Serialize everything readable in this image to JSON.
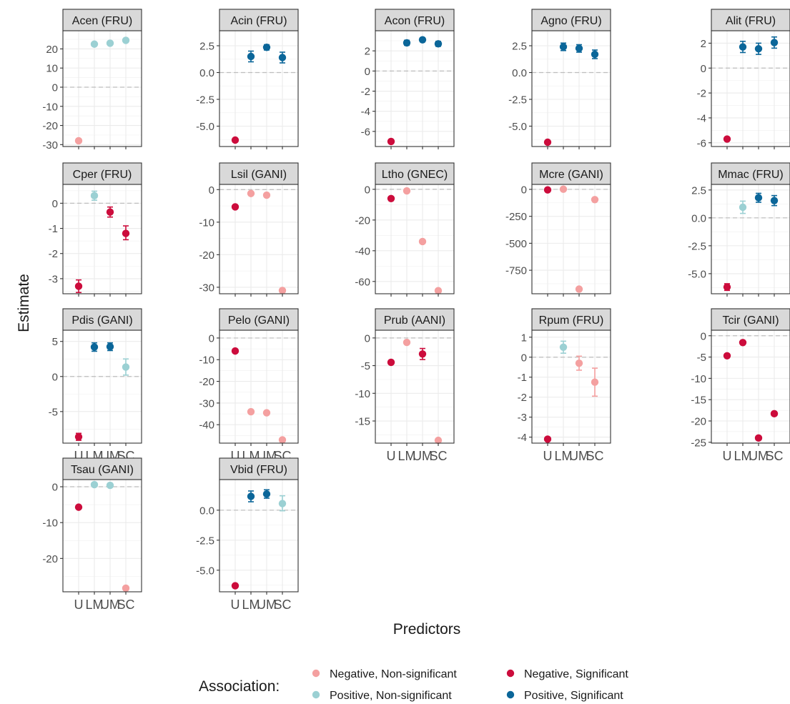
{
  "chart_data": {
    "type": "scatter",
    "facet_layout": "4 rows x 5 columns, free y scales",
    "xlabel": "Predictors",
    "ylabel": "Estimate",
    "categories": [
      "U",
      "LM",
      "UM",
      "SC"
    ],
    "grid": true,
    "reference_line": 0,
    "legend": {
      "title": "Association:",
      "position": "bottom",
      "entries": [
        {
          "label": "Negative, Non-significant",
          "color": "#f4a0a0"
        },
        {
          "label": "Negative, Significant",
          "color": "#cc0c3c"
        },
        {
          "label": "Positive, Non-significant",
          "color": "#9bd0d3"
        },
        {
          "label": "Positive, Significant",
          "color": "#0b6699"
        }
      ]
    },
    "panels": [
      {
        "title": "Acen (FRU)",
        "ylim": [
          -31,
          29.5
        ],
        "yticks": [
          -30,
          -20,
          -10,
          0,
          10,
          20
        ],
        "points": [
          {
            "x": "U",
            "y": -28,
            "lo": -28,
            "hi": -28,
            "assoc": 0
          },
          {
            "x": "LM",
            "y": 22.5,
            "lo": 22.5,
            "hi": 22.5,
            "assoc": 2
          },
          {
            "x": "UM",
            "y": 23,
            "lo": 23,
            "hi": 23,
            "assoc": 2
          },
          {
            "x": "SC",
            "y": 24.5,
            "lo": 24.5,
            "hi": 24.5,
            "assoc": 2
          }
        ]
      },
      {
        "title": "Acin (FRU)",
        "ylim": [
          -6.9,
          3.9
        ],
        "yticks": [
          -5,
          -2.5,
          0,
          2.5
        ],
        "ytick_labels": [
          "-5.0",
          "-2.5",
          "0.0",
          "2.5"
        ],
        "points": [
          {
            "x": "U",
            "y": -6.3,
            "lo": -6.3,
            "hi": -6.3,
            "assoc": 1
          },
          {
            "x": "LM",
            "y": 1.5,
            "lo": 1.0,
            "hi": 2.0,
            "assoc": 3
          },
          {
            "x": "UM",
            "y": 2.35,
            "lo": 2.1,
            "hi": 2.6,
            "assoc": 3
          },
          {
            "x": "SC",
            "y": 1.4,
            "lo": 0.9,
            "hi": 1.9,
            "assoc": 3
          }
        ]
      },
      {
        "title": "Acon (FRU)",
        "ylim": [
          -7.5,
          4.0
        ],
        "yticks": [
          -6,
          -4,
          -2,
          0,
          2
        ],
        "points": [
          {
            "x": "U",
            "y": -7.0,
            "lo": -7.0,
            "hi": -7.0,
            "assoc": 1
          },
          {
            "x": "LM",
            "y": 2.8,
            "lo": 2.55,
            "hi": 3.05,
            "assoc": 3
          },
          {
            "x": "UM",
            "y": 3.1,
            "lo": 2.9,
            "hi": 3.3,
            "assoc": 3
          },
          {
            "x": "SC",
            "y": 2.7,
            "lo": 2.45,
            "hi": 2.95,
            "assoc": 3
          }
        ]
      },
      {
        "title": "Agno (FRU)",
        "ylim": [
          -6.9,
          3.9
        ],
        "yticks": [
          -5,
          -2.5,
          0,
          2.5
        ],
        "ytick_labels": [
          "-5.0",
          "-2.5",
          "0.0",
          "2.5"
        ],
        "points": [
          {
            "x": "U",
            "y": -6.5,
            "lo": -6.5,
            "hi": -6.5,
            "assoc": 1
          },
          {
            "x": "LM",
            "y": 2.4,
            "lo": 2.05,
            "hi": 2.75,
            "assoc": 3
          },
          {
            "x": "UM",
            "y": 2.25,
            "lo": 1.9,
            "hi": 2.6,
            "assoc": 3
          },
          {
            "x": "SC",
            "y": 1.7,
            "lo": 1.3,
            "hi": 2.1,
            "assoc": 3
          }
        ]
      },
      {
        "title": "Alit (FRU)",
        "ylim": [
          -6.3,
          3.0
        ],
        "yticks": [
          -6,
          -4,
          -2,
          0,
          2
        ],
        "points": [
          {
            "x": "U",
            "y": -5.7,
            "lo": -5.7,
            "hi": -5.7,
            "assoc": 1
          },
          {
            "x": "LM",
            "y": 1.7,
            "lo": 1.25,
            "hi": 2.15,
            "assoc": 3
          },
          {
            "x": "UM",
            "y": 1.55,
            "lo": 1.1,
            "hi": 2.0,
            "assoc": 3
          },
          {
            "x": "SC",
            "y": 2.05,
            "lo": 1.6,
            "hi": 2.5,
            "assoc": 3
          }
        ]
      },
      {
        "title": "Cper (FRU)",
        "ylim": [
          -3.6,
          0.75
        ],
        "yticks": [
          -3,
          -2,
          -1,
          0
        ],
        "points": [
          {
            "x": "U",
            "y": -3.3,
            "lo": -3.55,
            "hi": -3.05,
            "assoc": 1
          },
          {
            "x": "LM",
            "y": 0.3,
            "lo": 0.12,
            "hi": 0.48,
            "assoc": 2
          },
          {
            "x": "UM",
            "y": -0.35,
            "lo": -0.55,
            "hi": -0.15,
            "assoc": 1
          },
          {
            "x": "SC",
            "y": -1.2,
            "lo": -1.45,
            "hi": -0.9,
            "assoc": 1
          }
        ]
      },
      {
        "title": "Lsil (GANI)",
        "ylim": [
          -32,
          1.6
        ],
        "yticks": [
          -30,
          -20,
          -10,
          0
        ],
        "points": [
          {
            "x": "U",
            "y": -5.3,
            "lo": -5.3,
            "hi": -5.3,
            "assoc": 1
          },
          {
            "x": "LM",
            "y": -1.2,
            "lo": -1.2,
            "hi": -1.2,
            "assoc": 0
          },
          {
            "x": "UM",
            "y": -1.7,
            "lo": -1.7,
            "hi": -1.7,
            "assoc": 0
          },
          {
            "x": "SC",
            "y": -31,
            "lo": -31,
            "hi": -31,
            "assoc": 0
          }
        ]
      },
      {
        "title": "Ltho (GNEC)",
        "ylim": [
          -68,
          3.2
        ],
        "yticks": [
          -60,
          -40,
          -20,
          0
        ],
        "points": [
          {
            "x": "U",
            "y": -6,
            "lo": -6,
            "hi": -6,
            "assoc": 1
          },
          {
            "x": "LM",
            "y": -1,
            "lo": -1,
            "hi": -1,
            "assoc": 0
          },
          {
            "x": "UM",
            "y": -34,
            "lo": -34,
            "hi": -34,
            "assoc": 0
          },
          {
            "x": "SC",
            "y": -66,
            "lo": -66,
            "hi": -66,
            "assoc": 0
          }
        ]
      },
      {
        "title": "Mcre (GANI)",
        "ylim": [
          -968,
          46
        ],
        "yticks": [
          -750,
          -500,
          -250,
          0
        ],
        "points": [
          {
            "x": "U",
            "y": -5,
            "lo": -5,
            "hi": -5,
            "assoc": 1
          },
          {
            "x": "LM",
            "y": 2,
            "lo": 2,
            "hi": 2,
            "assoc": 0
          },
          {
            "x": "UM",
            "y": -925,
            "lo": -925,
            "hi": -925,
            "assoc": 0
          },
          {
            "x": "SC",
            "y": -95,
            "lo": -95,
            "hi": -95,
            "assoc": 0
          }
        ]
      },
      {
        "title": "Mmac (FRU)",
        "ylim": [
          -6.8,
          3.0
        ],
        "yticks": [
          -5,
          -2.5,
          0,
          2.5
        ],
        "ytick_labels": [
          "-5.0",
          "-2.5",
          "0.0",
          "2.5"
        ],
        "points": [
          {
            "x": "U",
            "y": -6.2,
            "lo": -6.5,
            "hi": -5.9,
            "assoc": 1
          },
          {
            "x": "LM",
            "y": 0.95,
            "lo": 0.4,
            "hi": 1.5,
            "assoc": 2
          },
          {
            "x": "UM",
            "y": 1.8,
            "lo": 1.4,
            "hi": 2.2,
            "assoc": 3
          },
          {
            "x": "SC",
            "y": 1.55,
            "lo": 1.1,
            "hi": 2.0,
            "assoc": 3
          }
        ]
      },
      {
        "title": "Pdis (GANI)",
        "ylim": [
          -9.5,
          6.6
        ],
        "yticks": [
          -5,
          0,
          5
        ],
        "points": [
          {
            "x": "U",
            "y": -8.6,
            "lo": -9.1,
            "hi": -8.1,
            "assoc": 1
          },
          {
            "x": "LM",
            "y": 4.2,
            "lo": 3.6,
            "hi": 4.8,
            "assoc": 3
          },
          {
            "x": "UM",
            "y": 4.25,
            "lo": 3.7,
            "hi": 4.8,
            "assoc": 3
          },
          {
            "x": "SC",
            "y": 1.35,
            "lo": 0.2,
            "hi": 2.5,
            "assoc": 2
          }
        ]
      },
      {
        "title": "Pelo (GANI)",
        "ylim": [
          -48.5,
          3.6
        ],
        "yticks": [
          -40,
          -30,
          -20,
          -10,
          0
        ],
        "points": [
          {
            "x": "U",
            "y": -6,
            "lo": -6,
            "hi": -6,
            "assoc": 1
          },
          {
            "x": "LM",
            "y": -34,
            "lo": -34,
            "hi": -34,
            "assoc": 0
          },
          {
            "x": "UM",
            "y": -34.5,
            "lo": -34.5,
            "hi": -34.5,
            "assoc": 0
          },
          {
            "x": "SC",
            "y": -47,
            "lo": -47,
            "hi": -47,
            "assoc": 0
          }
        ]
      },
      {
        "title": "Prub (AANI)",
        "ylim": [
          -19.0,
          1.4
        ],
        "yticks": [
          -15,
          -10,
          -5,
          0
        ],
        "points": [
          {
            "x": "U",
            "y": -4.4,
            "lo": -4.4,
            "hi": -4.4,
            "assoc": 1
          },
          {
            "x": "LM",
            "y": -0.8,
            "lo": -0.8,
            "hi": -0.8,
            "assoc": 0
          },
          {
            "x": "UM",
            "y": -2.9,
            "lo": -3.9,
            "hi": -1.9,
            "assoc": 1
          },
          {
            "x": "SC",
            "y": -18.5,
            "lo": -18.5,
            "hi": -18.5,
            "assoc": 0
          }
        ]
      },
      {
        "title": "Rpum (FRU)",
        "ylim": [
          -4.3,
          1.35
        ],
        "yticks": [
          -4,
          -3,
          -2,
          -1,
          0,
          1
        ],
        "points": [
          {
            "x": "U",
            "y": -4.1,
            "lo": -4.1,
            "hi": -4.1,
            "assoc": 1
          },
          {
            "x": "LM",
            "y": 0.5,
            "lo": 0.2,
            "hi": 0.8,
            "assoc": 2
          },
          {
            "x": "UM",
            "y": -0.3,
            "lo": -0.65,
            "hi": 0.05,
            "assoc": 0
          },
          {
            "x": "SC",
            "y": -1.25,
            "lo": -1.95,
            "hi": -0.55,
            "assoc": 0
          }
        ]
      },
      {
        "title": "Tcir (GANI)",
        "ylim": [
          -25.2,
          1.3
        ],
        "yticks": [
          -25,
          -20,
          -15,
          -10,
          -5,
          0
        ],
        "points": [
          {
            "x": "U",
            "y": -4.7,
            "lo": -4.7,
            "hi": -4.7,
            "assoc": 1
          },
          {
            "x": "LM",
            "y": -1.6,
            "lo": -1.6,
            "hi": -1.6,
            "assoc": 1
          },
          {
            "x": "UM",
            "y": -24,
            "lo": -24,
            "hi": -24,
            "assoc": 1
          },
          {
            "x": "SC",
            "y": -18.3,
            "lo": -18.3,
            "hi": -18.3,
            "assoc": 1
          }
        ]
      },
      {
        "title": "Tsau (GANI)",
        "ylim": [
          -29.3,
          2.0
        ],
        "yticks": [
          -20,
          -10,
          0
        ],
        "points": [
          {
            "x": "U",
            "y": -5.7,
            "lo": -5.7,
            "hi": -5.7,
            "assoc": 1
          },
          {
            "x": "LM",
            "y": 0.6,
            "lo": 0.6,
            "hi": 0.6,
            "assoc": 2
          },
          {
            "x": "UM",
            "y": 0.4,
            "lo": 0.4,
            "hi": 0.4,
            "assoc": 2
          },
          {
            "x": "SC",
            "y": -28.3,
            "lo": -28.3,
            "hi": -28.3,
            "assoc": 0
          }
        ]
      },
      {
        "title": "Vbid (FRU)",
        "ylim": [
          -6.8,
          2.55
        ],
        "yticks": [
          -5,
          -2.5,
          0
        ],
        "ytick_labels": [
          "-5.0",
          "-2.5",
          "0.0"
        ],
        "points": [
          {
            "x": "U",
            "y": -6.3,
            "lo": -6.3,
            "hi": -6.3,
            "assoc": 1
          },
          {
            "x": "LM",
            "y": 1.15,
            "lo": 0.7,
            "hi": 1.6,
            "assoc": 3
          },
          {
            "x": "UM",
            "y": 1.35,
            "lo": 1.0,
            "hi": 1.7,
            "assoc": 3
          },
          {
            "x": "SC",
            "y": 0.55,
            "lo": -0.05,
            "hi": 1.2,
            "assoc": 2
          }
        ]
      }
    ]
  }
}
